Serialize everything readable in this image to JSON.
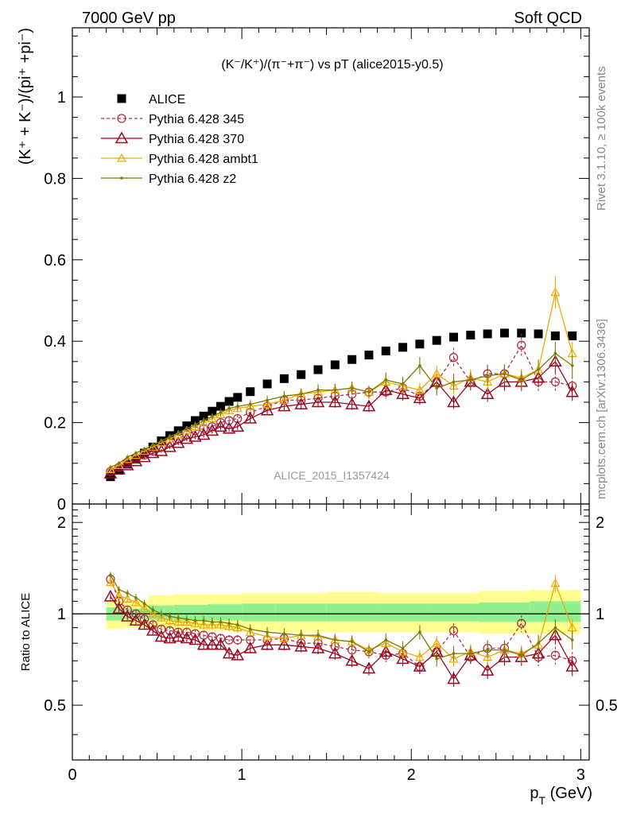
{
  "header": {
    "left": "7000 GeV pp",
    "right": "Soft QCD"
  },
  "side_labels": {
    "rivet": "Rivet 3.1.10, ≥ 100k events",
    "mcplots": "mcplots.cern.ch [arXiv:1306.3436]"
  },
  "watermark": "ALICE_2015_I1357424",
  "colors": {
    "alice": "#000000",
    "p345": "#b03045",
    "p370": "#990a22",
    "ambt1": "#f0a800",
    "z2": "#7a7a00",
    "band_inner": "#90f090",
    "band_outer": "#ffff90"
  },
  "chart_data": [
    {
      "type": "scatter",
      "title": "(K⁻/K⁺)/(π⁻+π⁻) vs pT (alice2015-y0.5)",
      "ylabel": "(K⁺ + K⁻)/(pi⁺ +pi⁻)",
      "xlim": [
        0,
        3.05
      ],
      "ylim": [
        0,
        1.17
      ],
      "yticks": [
        0,
        0.2,
        0.4,
        0.6,
        0.8,
        1
      ],
      "ytick_labels": [
        "0",
        "0.2",
        "0.4",
        "0.6",
        "0.8",
        "1"
      ],
      "legend_position": "top-left",
      "x": [
        0.225,
        0.275,
        0.325,
        0.375,
        0.425,
        0.475,
        0.525,
        0.575,
        0.625,
        0.675,
        0.725,
        0.775,
        0.825,
        0.875,
        0.925,
        0.975,
        1.05,
        1.15,
        1.25,
        1.35,
        1.45,
        1.55,
        1.65,
        1.75,
        1.85,
        1.95,
        2.05,
        2.15,
        2.25,
        2.35,
        2.45,
        2.55,
        2.65,
        2.75,
        2.85,
        2.95
      ],
      "series": [
        {
          "name": "ALICE",
          "marker": "square",
          "values": [
            0.067,
            0.083,
            0.098,
            0.11,
            0.125,
            0.14,
            0.155,
            0.168,
            0.18,
            0.192,
            0.205,
            0.216,
            0.228,
            0.24,
            0.252,
            0.262,
            0.276,
            0.295,
            0.308,
            0.318,
            0.33,
            0.342,
            0.355,
            0.366,
            0.376,
            0.385,
            0.393,
            0.402,
            0.41,
            0.415,
            0.418,
            0.42,
            0.42,
            0.418,
            0.413,
            0.413
          ]
        },
        {
          "name": "Pythia 6.428 345",
          "marker": "circle",
          "dashed": true,
          "values": [
            0.08,
            0.09,
            0.1,
            0.11,
            0.12,
            0.13,
            0.14,
            0.15,
            0.16,
            0.17,
            0.18,
            0.185,
            0.19,
            0.2,
            0.205,
            0.21,
            0.225,
            0.24,
            0.255,
            0.255,
            0.26,
            0.265,
            0.27,
            0.275,
            0.275,
            0.285,
            0.265,
            0.3,
            0.36,
            0.3,
            0.32,
            0.32,
            0.39,
            0.3,
            0.3,
            0.29
          ]
        },
        {
          "name": "Pythia 6.428 370",
          "marker": "triangle",
          "values": [
            0.075,
            0.085,
            0.095,
            0.105,
            0.115,
            0.125,
            0.13,
            0.14,
            0.15,
            0.16,
            0.165,
            0.17,
            0.18,
            0.19,
            0.185,
            0.19,
            0.21,
            0.23,
            0.24,
            0.245,
            0.25,
            0.25,
            0.245,
            0.24,
            0.28,
            0.27,
            0.26,
            0.3,
            0.25,
            0.3,
            0.27,
            0.3,
            0.3,
            0.31,
            0.35,
            0.275
          ]
        },
        {
          "name": "Pythia 6.428 ambt1",
          "marker": "triangle-small",
          "values": [
            0.085,
            0.095,
            0.11,
            0.12,
            0.13,
            0.14,
            0.15,
            0.16,
            0.17,
            0.18,
            0.19,
            0.2,
            0.21,
            0.22,
            0.23,
            0.235,
            0.24,
            0.245,
            0.255,
            0.27,
            0.275,
            0.28,
            0.285,
            0.275,
            0.3,
            0.29,
            0.28,
            0.32,
            0.29,
            0.31,
            0.3,
            0.32,
            0.31,
            0.33,
            0.52,
            0.37
          ]
        },
        {
          "name": "Pythia 6.428 z2",
          "marker": "dot",
          "values": [
            0.09,
            0.1,
            0.115,
            0.125,
            0.135,
            0.145,
            0.155,
            0.165,
            0.175,
            0.185,
            0.195,
            0.205,
            0.215,
            0.225,
            0.235,
            0.24,
            0.245,
            0.255,
            0.265,
            0.27,
            0.28,
            0.28,
            0.285,
            0.275,
            0.305,
            0.295,
            0.34,
            0.285,
            0.3,
            0.305,
            0.315,
            0.32,
            0.305,
            0.33,
            0.37,
            0.34
          ]
        }
      ]
    },
    {
      "type": "scatter",
      "ylabel": "Ratio to ALICE",
      "xlabel": "p_T (GeV)",
      "xlim": [
        0,
        3.05
      ],
      "ylim": [
        0.33,
        2.3
      ],
      "log_y": true,
      "xticks": [
        0,
        1,
        2,
        3
      ],
      "xtick_labels": [
        "0",
        "1",
        "2",
        "3"
      ],
      "yticks": [
        0.5,
        1,
        2
      ],
      "ytick_labels": [
        "0.5",
        "1",
        "2"
      ],
      "band_x": [
        0.2,
        0.3,
        0.45,
        0.6,
        0.8,
        1.0,
        1.2,
        1.5,
        1.8,
        2.1,
        2.4,
        2.7,
        3.0
      ],
      "band_inner": [
        [
          0.95,
          1.05
        ],
        [
          0.96,
          1.04
        ],
        [
          0.955,
          1.065
        ],
        [
          0.95,
          1.07
        ],
        [
          0.95,
          1.075
        ],
        [
          0.945,
          1.08
        ],
        [
          0.945,
          1.08
        ],
        [
          0.945,
          1.08
        ],
        [
          0.945,
          1.08
        ],
        [
          0.945,
          1.08
        ],
        [
          0.94,
          1.09
        ],
        [
          0.94,
          1.1
        ]
      ],
      "band_outer": [
        [
          0.89,
          1.11
        ],
        [
          0.9,
          1.1
        ],
        [
          0.89,
          1.15
        ],
        [
          0.88,
          1.16
        ],
        [
          0.88,
          1.16
        ],
        [
          0.88,
          1.17
        ],
        [
          0.87,
          1.17
        ],
        [
          0.87,
          1.18
        ],
        [
          0.87,
          1.17
        ],
        [
          0.87,
          1.17
        ],
        [
          0.86,
          1.19
        ],
        [
          0.86,
          1.2
        ]
      ],
      "x": [
        0.225,
        0.275,
        0.325,
        0.375,
        0.425,
        0.475,
        0.525,
        0.575,
        0.625,
        0.675,
        0.725,
        0.775,
        0.825,
        0.875,
        0.925,
        0.975,
        1.05,
        1.15,
        1.25,
        1.35,
        1.45,
        1.55,
        1.65,
        1.75,
        1.85,
        1.95,
        2.05,
        2.15,
        2.25,
        2.35,
        2.45,
        2.55,
        2.65,
        2.75,
        2.85,
        2.95
      ],
      "series": [
        {
          "name": "Pythia 6.428 345",
          "values": [
            1.3,
            1.1,
            1.03,
            1.0,
            0.96,
            0.92,
            0.89,
            0.88,
            0.87,
            0.87,
            0.86,
            0.85,
            0.84,
            0.83,
            0.82,
            0.82,
            0.82,
            0.82,
            0.83,
            0.8,
            0.8,
            0.78,
            0.76,
            0.75,
            0.73,
            0.74,
            0.67,
            0.75,
            0.88,
            0.72,
            0.77,
            0.77,
            0.93,
            0.72,
            0.73,
            0.7
          ]
        },
        {
          "name": "Pythia 6.428 370",
          "values": [
            1.14,
            1.04,
            0.98,
            0.95,
            0.92,
            0.88,
            0.84,
            0.83,
            0.84,
            0.83,
            0.82,
            0.79,
            0.79,
            0.79,
            0.74,
            0.73,
            0.77,
            0.79,
            0.79,
            0.78,
            0.77,
            0.74,
            0.7,
            0.66,
            0.75,
            0.71,
            0.67,
            0.75,
            0.61,
            0.73,
            0.65,
            0.72,
            0.72,
            0.74,
            0.85,
            0.67
          ]
        },
        {
          "name": "Pythia 6.428 ambt1",
          "values": [
            1.27,
            1.15,
            1.12,
            1.09,
            1.04,
            1.0,
            0.97,
            0.95,
            0.94,
            0.94,
            0.93,
            0.92,
            0.92,
            0.92,
            0.91,
            0.9,
            0.87,
            0.84,
            0.83,
            0.85,
            0.84,
            0.82,
            0.81,
            0.76,
            0.8,
            0.75,
            0.72,
            0.8,
            0.71,
            0.75,
            0.72,
            0.76,
            0.74,
            0.79,
            1.26,
            0.9
          ]
        },
        {
          "name": "Pythia 6.428 z2",
          "values": [
            1.34,
            1.2,
            1.17,
            1.13,
            1.08,
            1.03,
            1.0,
            0.98,
            0.97,
            0.96,
            0.95,
            0.95,
            0.94,
            0.94,
            0.93,
            0.92,
            0.89,
            0.87,
            0.86,
            0.85,
            0.85,
            0.82,
            0.81,
            0.75,
            0.82,
            0.77,
            0.87,
            0.71,
            0.74,
            0.74,
            0.76,
            0.76,
            0.73,
            0.8,
            0.9,
            0.82
          ]
        }
      ]
    }
  ]
}
